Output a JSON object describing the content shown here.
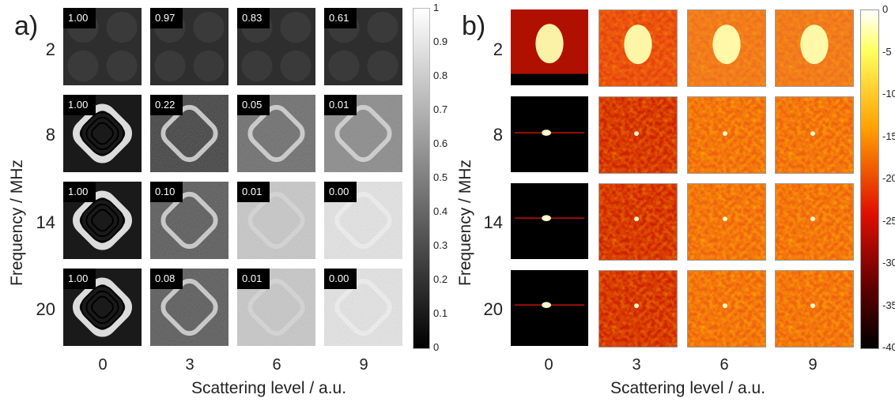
{
  "panel_a": {
    "label": "a)",
    "y_label": "Frequency / MHz",
    "x_label": "Scattering level / a.u.",
    "rows": [
      "2",
      "8",
      "14",
      "20"
    ],
    "cols": [
      "0",
      "3",
      "6",
      "9"
    ],
    "correlations": [
      [
        "1.00",
        "0.97",
        "0.83",
        "0.61"
      ],
      [
        "1.00",
        "0.22",
        "0.05",
        "0.01"
      ],
      [
        "1.00",
        "0.10",
        "0.01",
        "0.00"
      ],
      [
        "1.00",
        "0.08",
        "0.01",
        "0.00"
      ]
    ],
    "colorbar_ticks": [
      "1",
      "0.9",
      "0.8",
      "0.7",
      "0.6",
      "0.5",
      "0.4",
      "0.3",
      "0.2",
      "0.1",
      "0"
    ]
  },
  "panel_b": {
    "label": "b)",
    "y_label": "Frequency / MHz",
    "x_label": "Scattering level / a.u.",
    "rows": [
      "2",
      "8",
      "14",
      "20"
    ],
    "cols": [
      "0",
      "3",
      "6",
      "9"
    ],
    "colorbar_ticks": [
      "0",
      "-5",
      "-10",
      "-15",
      "-20",
      "-25",
      "-30",
      "-35",
      "-40"
    ]
  },
  "colors": {
    "gray_dark": "#000000",
    "gray_light": "#ffffff",
    "hot_low": "#000000",
    "hot_mid": "#e00000",
    "hot_high": "#ffff80"
  }
}
